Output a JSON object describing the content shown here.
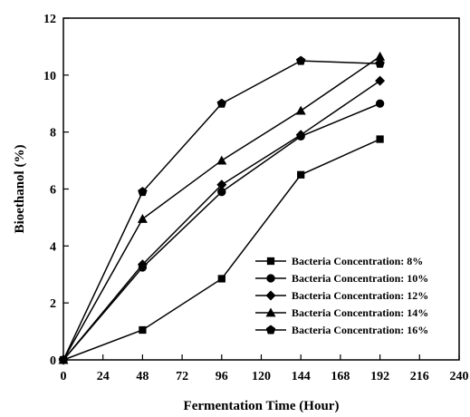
{
  "chart_data": {
    "type": "line",
    "title": "",
    "xlabel": "Fermentation Time (Hour)",
    "ylabel": "Bioethanol (%)",
    "xlim": [
      0,
      240
    ],
    "ylim": [
      0,
      12
    ],
    "xticks": [
      0,
      24,
      48,
      72,
      96,
      120,
      144,
      168,
      192,
      216,
      240
    ],
    "yticks": [
      0,
      2,
      4,
      6,
      8,
      10,
      12
    ],
    "x": [
      0,
      48,
      96,
      144,
      192
    ],
    "grid": false,
    "legend_position": "bottom-right",
    "series": [
      {
        "name": "Bacteria Concentration: 8%",
        "marker": "square",
        "values": [
          0,
          1.05,
          2.85,
          6.5,
          7.75
        ]
      },
      {
        "name": "Bacteria Concentration: 10%",
        "marker": "circle",
        "values": [
          0,
          3.25,
          5.9,
          7.85,
          9.0
        ]
      },
      {
        "name": "Bacteria Concentration: 12%",
        "marker": "diamond",
        "values": [
          0,
          3.35,
          6.15,
          7.9,
          9.8
        ]
      },
      {
        "name": "Bacteria Concentration: 14%",
        "marker": "triangle",
        "values": [
          0,
          4.95,
          7.0,
          8.75,
          10.65
        ]
      },
      {
        "name": "Bacteria Concentration: 16%",
        "marker": "pentagon",
        "values": [
          0,
          5.9,
          9.0,
          10.5,
          10.4
        ]
      }
    ],
    "colors": {
      "line": "#000000",
      "marker": "#000000",
      "axis": "#000000",
      "background": "#ffffff"
    }
  }
}
